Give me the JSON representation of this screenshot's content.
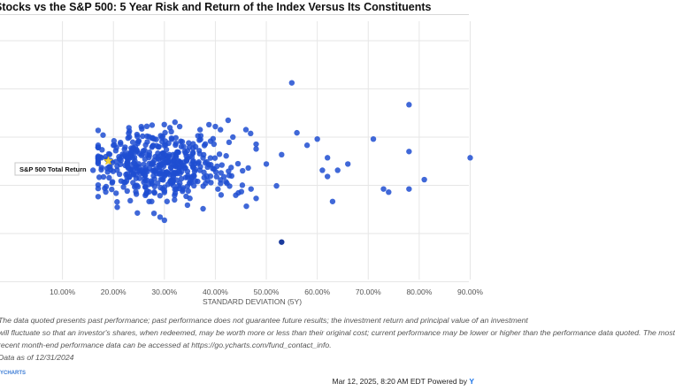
{
  "header": {
    "title": "Stocks vs the S&P 500: 5 Year Risk and Return of the Index Versus Its Constituents"
  },
  "chart_data": {
    "type": "scatter",
    "title": "Stocks vs the S&P 500: 5 Year Risk and Return of the Index Versus Its Constituents",
    "xlabel": "STANDARD DEVIATION (5Y)",
    "ylabel": "",
    "xlim": [
      0.0,
      0.92
    ],
    "ylim": [
      -0.25,
      0.6
    ],
    "x_ticks": [
      0.1,
      0.2,
      0.3,
      0.4,
      0.5,
      0.6,
      0.7,
      0.8,
      0.9
    ],
    "x_tick_labels": [
      "10.00%",
      "20.00%",
      "30.00%",
      "40.00%",
      "50.00%",
      "60.00%",
      "70.00%",
      "80.00%",
      "90.00%"
    ],
    "grid": true,
    "annotation": {
      "label": "S&P 500 Total Return",
      "x": 0.19,
      "y": 0.13,
      "color": "#f3d23b"
    },
    "highlight_point": {
      "x": 0.53,
      "y": -0.13,
      "color": "#1a3a9c"
    },
    "point_color": "#1f4ed1",
    "outliers": [
      [
        0.55,
        0.38
      ],
      [
        0.78,
        0.31
      ],
      [
        0.71,
        0.2
      ],
      [
        0.9,
        0.14
      ],
      [
        0.78,
        0.16
      ],
      [
        0.4,
        0.24
      ],
      [
        0.41,
        0.23
      ],
      [
        0.46,
        0.23
      ],
      [
        0.28,
        0.2
      ],
      [
        0.2,
        0.18
      ],
      [
        0.16,
        0.1
      ],
      [
        0.33,
        0.24
      ],
      [
        0.37,
        0.23
      ],
      [
        0.56,
        0.22
      ],
      [
        0.6,
        0.2
      ],
      [
        0.58,
        0.18
      ],
      [
        0.62,
        0.14
      ],
      [
        0.66,
        0.12
      ],
      [
        0.61,
        0.1
      ],
      [
        0.64,
        0.1
      ],
      [
        0.62,
        0.08
      ],
      [
        0.81,
        0.07
      ],
      [
        0.73,
        0.04
      ],
      [
        0.74,
        0.03
      ],
      [
        0.78,
        0.04
      ],
      [
        0.63,
        0.0
      ],
      [
        0.47,
        0.04
      ],
      [
        0.44,
        0.02
      ],
      [
        0.52,
        0.05
      ],
      [
        0.5,
        0.12
      ],
      [
        0.53,
        0.15
      ],
      [
        0.3,
        -0.06
      ],
      [
        0.27,
        0.0
      ],
      [
        0.35,
        0.01
      ],
      [
        0.32,
        0.02
      ]
    ],
    "cluster": {
      "count": 470,
      "x_center": 0.29,
      "x_spread": 0.075,
      "y_center": 0.115,
      "y_spread": 0.055,
      "seed": 17
    }
  },
  "disclaimer": {
    "line1": "The data quoted presents past performance; past performance does not guarantee future results; the investment return and principal value of an investment",
    "line2": "will fluctuate so that an investor's shares, when redeemed, may be worth more or less than their original cost; current performance may be lower or higher than the performance data quoted. The most",
    "line3": "recent month-end performance data can be accessed at https://go.ycharts.com/fund_contact_info.",
    "line4": "Data as of 12/31/2024"
  },
  "footer": {
    "brand": "YCHARTS",
    "timestamp_text": "Mar 12, 2025, 8:20 AM EDT Powered by",
    "logo": "Y"
  }
}
